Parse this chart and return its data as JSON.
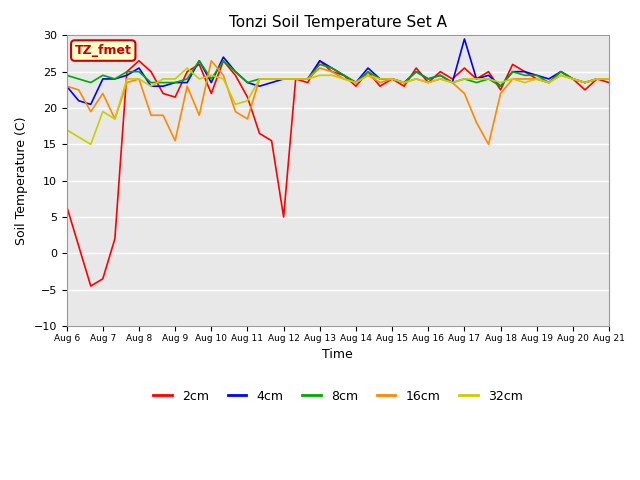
{
  "title": "Tonzi Soil Temperature Set A",
  "xlabel": "Time",
  "ylabel": "Soil Temperature (C)",
  "ylim": [
    -10,
    30
  ],
  "background_color": "#e8e8e8",
  "annotation_text": "TZ_fmet",
  "annotation_box_color": "#ffffcc",
  "annotation_border_color": "#cc0000",
  "x_tick_labels": [
    "Aug 6",
    "Aug 7",
    "Aug 8",
    "Aug 9",
    "Aug 10",
    "Aug 11",
    "Aug 12",
    "Aug 13",
    "Aug 14",
    "Aug 15",
    "Aug 16",
    "Aug 17",
    "Aug 18",
    "Aug 19",
    "Aug 20",
    "Aug 21"
  ],
  "series": {
    "2cm": {
      "color": "#ff0000",
      "data_x": [
        0,
        0.33,
        0.67,
        1.0,
        1.33,
        1.67,
        2.0,
        2.33,
        2.67,
        3.0,
        3.33,
        3.67,
        4.0,
        4.33,
        4.67,
        5.0,
        5.33,
        5.67,
        6.0,
        6.33,
        6.67,
        7.0,
        7.33,
        7.67,
        8.0,
        8.33,
        8.67,
        9.0,
        9.33,
        9.67,
        10.0,
        10.33,
        10.67,
        11.0,
        11.33,
        11.67,
        12.0,
        12.33,
        12.67,
        13.0,
        13.33,
        13.67,
        14.0,
        14.33,
        14.67,
        15.0
      ],
      "data_y": [
        6.5,
        1.0,
        -4.5,
        -3.5,
        2.0,
        25.0,
        26.5,
        25.0,
        22.0,
        21.5,
        25.0,
        26.0,
        22.0,
        26.5,
        24.5,
        21.5,
        16.5,
        15.5,
        5.0,
        24.0,
        23.5,
        26.5,
        25.0,
        24.5,
        23.0,
        25.0,
        23.0,
        24.0,
        23.0,
        25.5,
        23.5,
        25.0,
        24.0,
        25.5,
        24.0,
        25.0,
        22.5,
        26.0,
        25.0,
        24.0,
        23.5,
        25.0,
        24.0,
        22.5,
        24.0,
        23.5
      ]
    },
    "4cm": {
      "color": "#0000ff",
      "data_y": [
        23.0,
        21.0,
        20.5,
        24.0,
        24.0,
        24.5,
        25.5,
        23.0,
        23.0,
        23.5,
        23.5,
        26.5,
        23.5,
        27.0,
        25.0,
        23.5,
        23.0,
        23.5,
        24.0,
        24.0,
        24.0,
        26.5,
        25.5,
        24.5,
        23.5,
        25.5,
        24.0,
        24.0,
        23.5,
        25.0,
        24.0,
        24.5,
        23.5,
        29.5,
        24.0,
        24.5,
        23.0,
        25.0,
        25.0,
        24.5,
        24.0,
        25.0,
        24.0,
        23.5,
        24.0,
        24.0
      ]
    },
    "8cm": {
      "color": "#00aa00",
      "data_y": [
        24.5,
        24.0,
        23.5,
        24.5,
        24.0,
        25.0,
        25.0,
        23.5,
        23.5,
        23.5,
        24.0,
        26.5,
        24.0,
        26.5,
        25.0,
        23.5,
        24.0,
        24.0,
        24.0,
        24.0,
        24.0,
        26.0,
        25.5,
        24.5,
        23.5,
        25.0,
        24.0,
        24.0,
        23.5,
        25.0,
        24.0,
        24.5,
        23.5,
        24.0,
        23.5,
        24.0,
        23.0,
        25.0,
        24.5,
        24.5,
        23.5,
        25.0,
        24.0,
        23.5,
        24.0,
        24.0
      ]
    },
    "16cm": {
      "color": "#ff8800",
      "data_y": [
        23.0,
        22.5,
        19.5,
        22.0,
        18.5,
        23.5,
        24.0,
        19.0,
        19.0,
        15.5,
        23.0,
        19.0,
        26.5,
        24.5,
        19.5,
        18.5,
        24.0,
        24.0,
        24.0,
        24.0,
        24.0,
        25.5,
        25.0,
        24.0,
        23.5,
        24.5,
        23.5,
        24.0,
        23.5,
        24.0,
        23.5,
        24.0,
        23.5,
        22.0,
        18.0,
        15.0,
        22.0,
        24.0,
        24.0,
        24.0,
        23.5,
        24.5,
        24.0,
        23.5,
        24.0,
        24.0
      ]
    },
    "32cm": {
      "color": "#cccc00",
      "data_y": [
        17.0,
        16.0,
        15.0,
        19.5,
        18.5,
        24.0,
        24.0,
        23.0,
        24.0,
        24.0,
        25.5,
        24.0,
        24.5,
        24.0,
        20.5,
        21.0,
        24.0,
        24.0,
        24.0,
        24.0,
        24.0,
        24.5,
        24.5,
        24.0,
        23.5,
        24.5,
        24.0,
        24.0,
        23.5,
        24.0,
        23.5,
        24.0,
        23.5,
        24.0,
        24.0,
        24.0,
        23.5,
        24.0,
        23.5,
        24.0,
        23.5,
        24.5,
        24.0,
        23.5,
        24.0,
        24.0
      ]
    }
  },
  "legend_labels": [
    "2cm",
    "4cm",
    "8cm",
    "16cm",
    "32cm"
  ],
  "legend_colors": [
    "#ff0000",
    "#0000ff",
    "#00aa00",
    "#ff8800",
    "#cccc00"
  ]
}
